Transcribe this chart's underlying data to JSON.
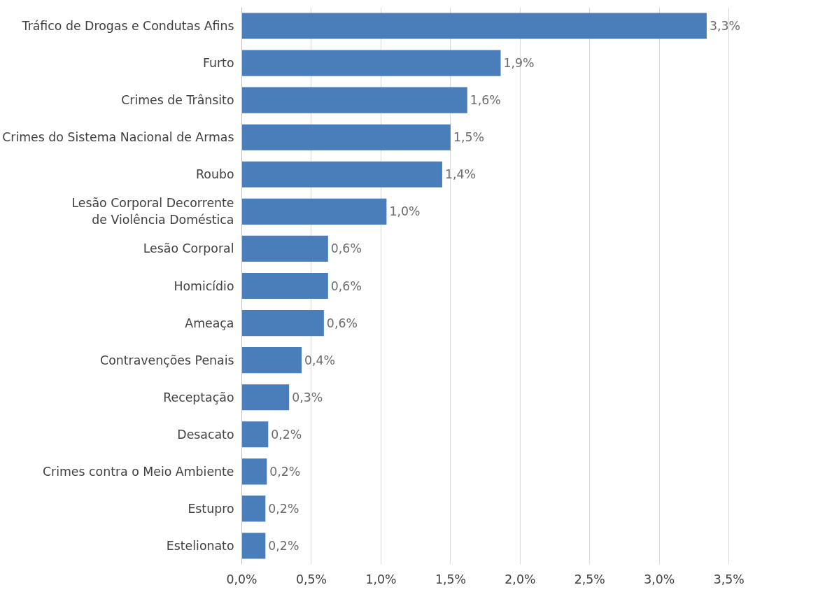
{
  "chart_data": {
    "type": "bar",
    "orientation": "horizontal",
    "categories": [
      "Tráfico de Drogas e Condutas Afins",
      "Furto",
      "Crimes de Trânsito",
      "Crimes do Sistema Nacional de Armas",
      "Roubo",
      "Lesão Corporal Decorrente\nde Violência Doméstica",
      "Lesão Corporal",
      "Homicídio",
      "Ameaça",
      "Contravenções Penais",
      "Receptação",
      "Desacato",
      "Crimes contra o Meio Ambiente",
      "Estupro",
      "Estelionato"
    ],
    "values": [
      3.34,
      1.86,
      1.62,
      1.5,
      1.44,
      1.04,
      0.62,
      0.62,
      0.59,
      0.43,
      0.34,
      0.19,
      0.18,
      0.17,
      0.17
    ],
    "value_labels": [
      "3,3%",
      "1,9%",
      "1,6%",
      "1,5%",
      "1,4%",
      "1,0%",
      "0,6%",
      "0,6%",
      "0,6%",
      "0,4%",
      "0,3%",
      "0,2%",
      "0,2%",
      "0,2%",
      "0,2%"
    ],
    "color": "#4a7ebb",
    "xlim": [
      0,
      3.5
    ],
    "xticks": [
      {
        "value": 0,
        "label": "0,0%"
      },
      {
        "value": 0.5,
        "label": "0,5%"
      },
      {
        "value": 1,
        "label": "1,0%"
      },
      {
        "value": 1.5,
        "label": "1,5%"
      },
      {
        "value": 2,
        "label": "2,0%"
      },
      {
        "value": 2.5,
        "label": "2,5%"
      },
      {
        "value": 3,
        "label": "3,0%"
      },
      {
        "value": 3.5,
        "label": "3,5%"
      }
    ],
    "grid": "x"
  }
}
